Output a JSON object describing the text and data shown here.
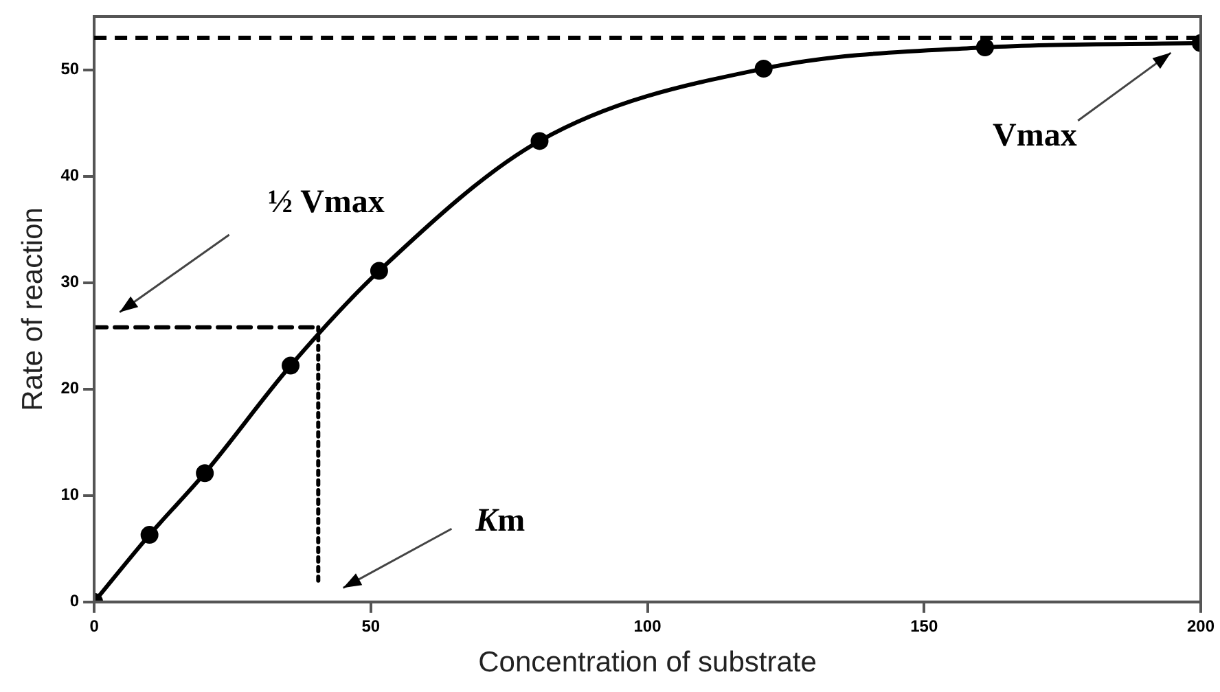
{
  "chart_data": {
    "type": "line",
    "xlabel": "Concentration of substrate",
    "ylabel": "Rate of reaction",
    "xlim": [
      0,
      200
    ],
    "xticks": [
      0,
      50,
      100,
      150,
      200
    ],
    "ylim": [
      0,
      55
    ],
    "yticks": [
      0,
      10,
      20,
      30,
      40,
      50
    ],
    "grid": false,
    "legend": false,
    "series": [
      {
        "color": "#000000",
        "marker": "circle",
        "line_style": "solid",
        "x": [
          0,
          10,
          20,
          35.5,
          51.5,
          80.5,
          121,
          161,
          200
        ],
        "values": [
          0,
          6.3,
          12.1,
          22.2,
          31.1,
          43.3,
          50.1,
          52.1,
          52.5
        ]
      },
      {
        "color": "#000000",
        "marker": "none",
        "line_style": "dashed",
        "x": [
          0,
          40.5
        ],
        "values": [
          25.8,
          25.8
        ]
      },
      {
        "color": "#000000",
        "marker": "none",
        "line_style": "dotted",
        "x": [
          40.5,
          40.5
        ],
        "values": [
          2,
          25.8
        ]
      }
    ],
    "ref_lines": [
      {
        "axis": "y",
        "value": 53,
        "color": "#000000",
        "line_style": "dashed"
      }
    ],
    "annotations": [
      "½ Vmax",
      "Vmax",
      "Km"
    ]
  }
}
